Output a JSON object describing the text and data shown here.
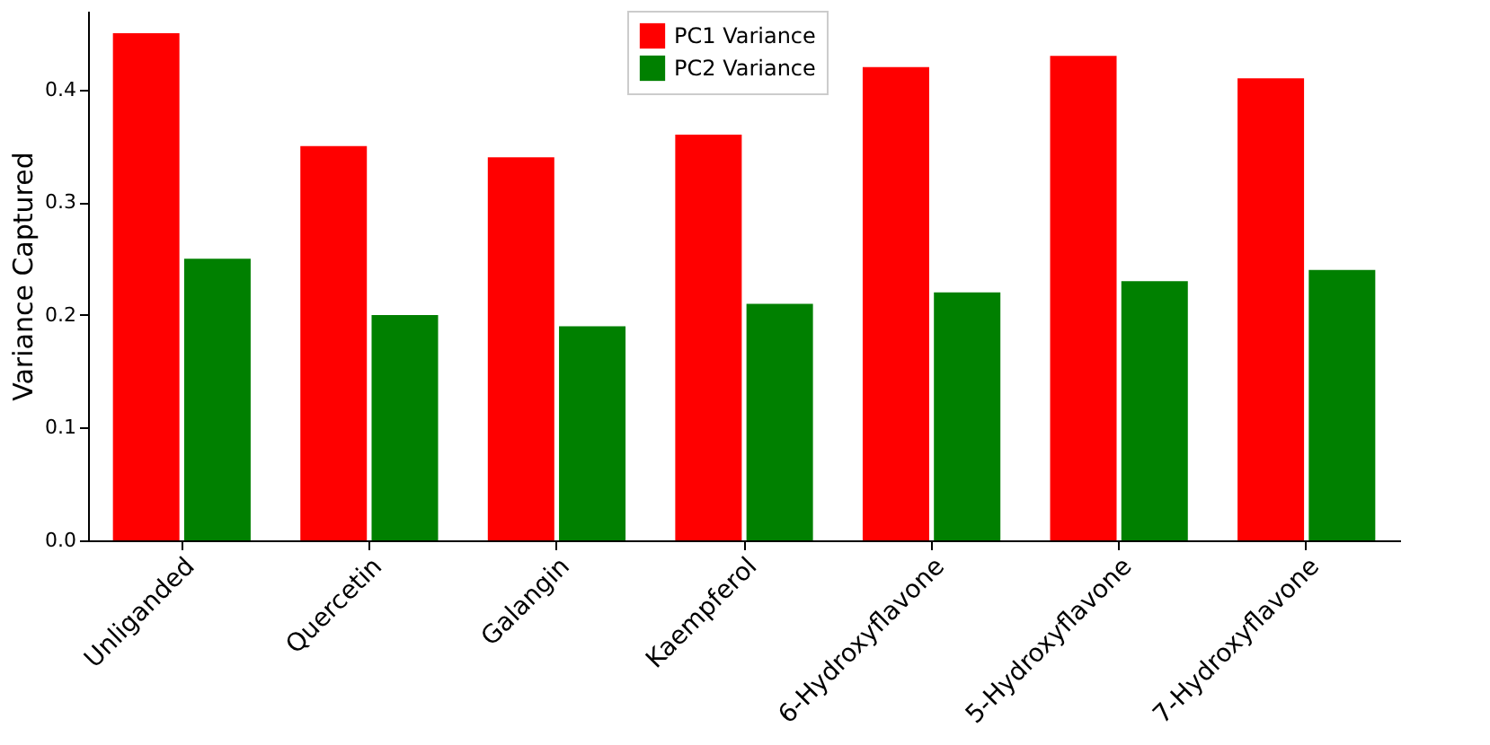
{
  "chart_data": {
    "type": "bar",
    "ylabel": "Variance Captured",
    "categories": [
      "Unliganded",
      "Quercetin",
      "Galangin",
      "Kaempferol",
      "6-Hydroxyflavone",
      "5-Hydroxyflavone",
      "7-Hydroxyflavone"
    ],
    "series": [
      {
        "name": "PC1 Variance",
        "color": "#ff0000",
        "values": [
          0.45,
          0.35,
          0.34,
          0.36,
          0.42,
          0.43,
          0.41
        ]
      },
      {
        "name": "PC2 Variance",
        "color": "#008000",
        "values": [
          0.25,
          0.2,
          0.19,
          0.21,
          0.22,
          0.23,
          0.24
        ]
      }
    ],
    "ylim": [
      0,
      0.47
    ],
    "yticks": [
      {
        "value": 0,
        "label": "0.0"
      },
      {
        "value": 0.1,
        "label": "0.1"
      },
      {
        "value": 0.2,
        "label": "0.2"
      },
      {
        "value": 0.3,
        "label": "0.3"
      },
      {
        "value": 0.4,
        "label": "0.4"
      }
    ],
    "grid": false,
    "legend": "top"
  }
}
